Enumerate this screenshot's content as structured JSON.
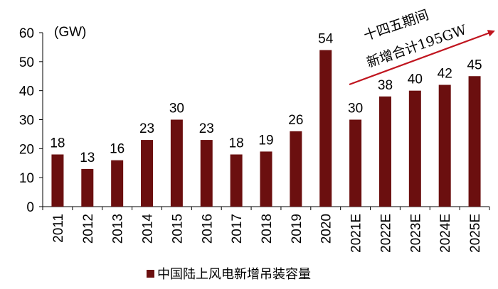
{
  "chart_data": {
    "type": "bar",
    "categories": [
      "2011",
      "2012",
      "2013",
      "2014",
      "2015",
      "2016",
      "2017",
      "2018",
      "2019",
      "2020",
      "2021E",
      "2022E",
      "2023E",
      "2024E",
      "2025E"
    ],
    "values": [
      18,
      13,
      16,
      23,
      30,
      23,
      18,
      19,
      26,
      54,
      30,
      38,
      40,
      42,
      45
    ],
    "data_labels": [
      "18",
      "13",
      "16",
      "23",
      "30",
      "23",
      "18",
      "19",
      "26",
      "54",
      "30",
      "38",
      "40",
      "42",
      "45"
    ],
    "ylim": [
      0,
      60
    ],
    "yticks": [
      0,
      10,
      20,
      30,
      40,
      50,
      60
    ],
    "y_unit_label": "(GW)",
    "series": [
      {
        "name": "中国陆上风电新增吊装容量",
        "values": [
          18,
          13,
          16,
          23,
          30,
          23,
          18,
          19,
          26,
          54,
          30,
          38,
          40,
          42,
          45
        ]
      }
    ],
    "annotation": {
      "line1": "十四五期间",
      "line2": "新增合计195GW"
    },
    "legend": "bottom-center",
    "grid": false,
    "colors": {
      "bar": "#6b0f0f",
      "arrow": "#c0151f",
      "axis": "#000000"
    }
  }
}
